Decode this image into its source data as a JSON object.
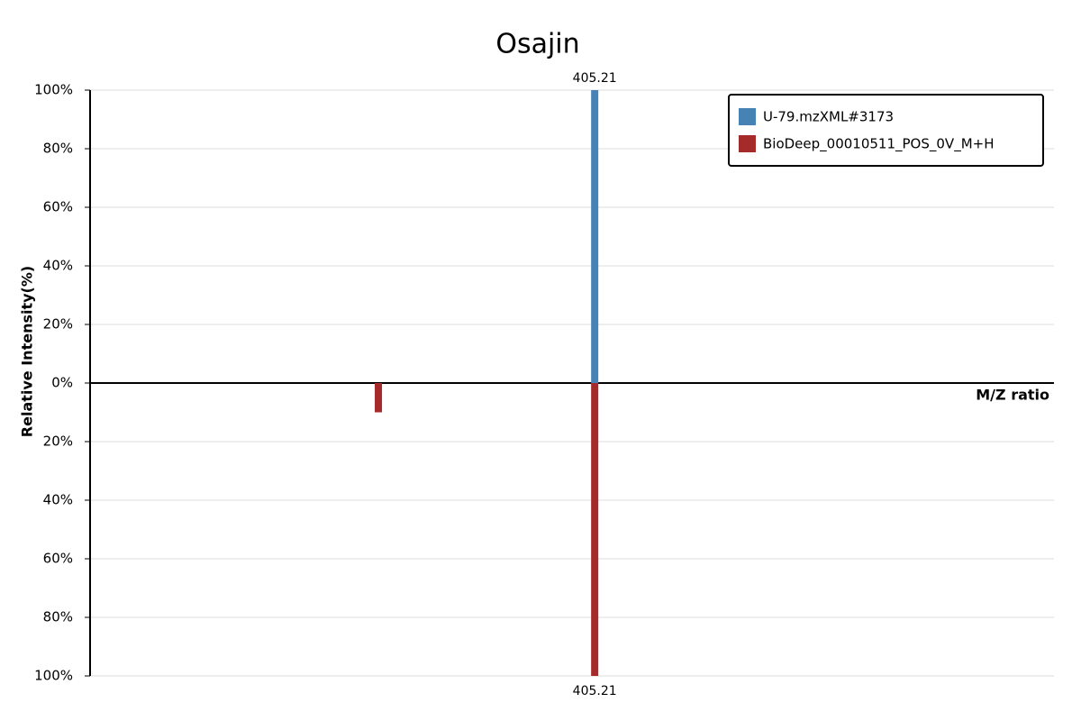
{
  "chart_data": {
    "type": "mirror-bar",
    "title": "Osajin",
    "xlabel": "M/Z ratio",
    "ylabel": "Relative Intensity(%)",
    "xlim": [
      0,
      774
    ],
    "ylim": [
      -100,
      100
    ],
    "yticks": [
      {
        "value": -100,
        "label": "100%"
      },
      {
        "value": -80,
        "label": "80%"
      },
      {
        "value": -60,
        "label": "60%"
      },
      {
        "value": -40,
        "label": "40%"
      },
      {
        "value": -20,
        "label": "20%"
      },
      {
        "value": 0,
        "label": "0%"
      },
      {
        "value": 20,
        "label": "20%"
      },
      {
        "value": 40,
        "label": "40%"
      },
      {
        "value": 60,
        "label": "60%"
      },
      {
        "value": 80,
        "label": "80%"
      },
      {
        "value": 100,
        "label": "100%"
      }
    ],
    "grid": true,
    "legend": "top-right",
    "series": [
      {
        "name": "U-79.mzXML#3173",
        "color": "#4682b4",
        "x": [
          405.21
        ],
        "values": [
          100
        ]
      },
      {
        "name": "BioDeep_00010511_POS_0V_M+H",
        "color": "#a52a2a",
        "x": [
          231.5,
          405.21
        ],
        "values": [
          -10,
          -100
        ]
      }
    ]
  }
}
